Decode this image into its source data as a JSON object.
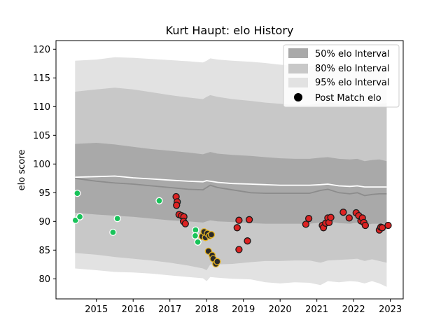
{
  "chart_data": {
    "type": "scatter",
    "title": "Kurt Haupt: elo History",
    "xlabel": "",
    "ylabel": "elo score",
    "xlim": [
      2013.9,
      2023.35
    ],
    "ylim": [
      76.5,
      121.5
    ],
    "xticks": [
      2015,
      2016,
      2017,
      2018,
      2019,
      2020,
      2021,
      2022,
      2023
    ],
    "yticks": [
      80,
      85,
      90,
      95,
      100,
      105,
      110,
      115,
      120
    ],
    "grid": false,
    "legend_position": "top-right",
    "legend": [
      "50% elo Interval",
      "80% elo Interval",
      "95% elo Interval",
      "Post Match elo"
    ],
    "colors": {
      "band50": "#a9a9a9",
      "band80": "#c8c8c8",
      "band95": "#e2e2e2",
      "median_line": "#8c8c8c",
      "mean_line": "#ffffff",
      "marker_green": "#19c35a",
      "marker_yellow": "#e6b422",
      "marker_red": "#dd2222"
    },
    "bands": {
      "x": [
        2014.42,
        2015.0,
        2015.5,
        2016.0,
        2016.5,
        2017.0,
        2017.5,
        2017.9,
        2018.0,
        2018.1,
        2018.3,
        2018.7,
        2019.2,
        2019.6,
        2020.0,
        2020.4,
        2020.8,
        2021.1,
        2021.3,
        2021.6,
        2021.9,
        2022.1,
        2022.3,
        2022.5,
        2022.7,
        2022.9
      ],
      "median": [
        97.5,
        97.0,
        96.7,
        96.5,
        96.2,
        95.9,
        95.6,
        95.5,
        95.9,
        96.3,
        95.9,
        95.5,
        95.0,
        94.9,
        94.9,
        94.9,
        94.9,
        95.4,
        95.6,
        95.0,
        94.8,
        95.0,
        94.5,
        94.7,
        94.8,
        94.8
      ],
      "mean": [
        97.7,
        97.8,
        97.9,
        97.6,
        97.4,
        97.2,
        97.0,
        96.9,
        97.1,
        97.0,
        96.8,
        96.6,
        96.5,
        96.4,
        96.3,
        96.3,
        96.3,
        96.4,
        96.5,
        96.2,
        96.1,
        96.2,
        96.0,
        96.0,
        96.0,
        96.0
      ],
      "p50_upper": [
        103.5,
        103.7,
        103.4,
        103.0,
        102.6,
        102.3,
        102.0,
        101.7,
        101.9,
        102.1,
        101.8,
        101.6,
        101.4,
        101.2,
        101.0,
        100.9,
        100.9,
        101.1,
        101.2,
        100.9,
        100.8,
        100.9,
        100.5,
        100.7,
        100.8,
        100.5
      ],
      "p50_lower": [
        91.5,
        91.2,
        91.0,
        90.8,
        90.5,
        90.2,
        90.0,
        89.8,
        90.0,
        90.2,
        90.0,
        89.9,
        89.7,
        89.6,
        89.6,
        89.6,
        89.6,
        89.8,
        90.0,
        89.7,
        89.6,
        89.8,
        89.3,
        89.6,
        89.6,
        89.6
      ],
      "p80_upper": [
        112.6,
        113.0,
        113.3,
        113.0,
        112.5,
        112.0,
        111.6,
        111.3,
        111.7,
        112.0,
        111.7,
        111.3,
        111.0,
        110.7,
        110.5,
        110.3,
        110.3,
        110.6,
        110.8,
        110.4,
        110.2,
        110.2,
        109.9,
        110.2,
        110.5,
        110.6
      ],
      "p80_lower": [
        84.5,
        84.2,
        83.8,
        83.5,
        83.2,
        82.8,
        82.3,
        81.8,
        81.5,
        82.5,
        82.5,
        82.6,
        82.9,
        83.1,
        83.1,
        83.2,
        83.2,
        82.8,
        83.2,
        83.3,
        83.4,
        83.5,
        83.1,
        83.4,
        83.1,
        82.8
      ],
      "p95_upper": [
        118.0,
        118.2,
        118.6,
        118.5,
        118.3,
        118.1,
        117.9,
        117.7,
        118.0,
        118.4,
        118.2,
        118.0,
        117.8,
        117.6,
        117.3,
        117.1,
        117.0,
        117.3,
        117.4,
        117.1,
        116.9,
        116.9,
        116.6,
        116.9,
        117.1,
        117.2
      ],
      "p95_lower": [
        81.8,
        81.5,
        81.2,
        81.1,
        80.9,
        80.6,
        80.3,
        80.1,
        79.6,
        80.3,
        80.2,
        80.0,
        79.9,
        79.4,
        79.2,
        79.4,
        79.3,
        78.9,
        79.6,
        79.4,
        79.6,
        79.5,
        79.2,
        79.6,
        79.2,
        78.6
      ]
    },
    "points": [
      {
        "x": 2014.48,
        "y": 94.9,
        "group": "green"
      },
      {
        "x": 2014.43,
        "y": 90.2,
        "group": "green"
      },
      {
        "x": 2014.55,
        "y": 90.8,
        "group": "green"
      },
      {
        "x": 2015.45,
        "y": 88.1,
        "group": "green"
      },
      {
        "x": 2015.57,
        "y": 90.5,
        "group": "green"
      },
      {
        "x": 2016.71,
        "y": 93.6,
        "group": "green"
      },
      {
        "x": 2017.17,
        "y": 94.3,
        "group": "red"
      },
      {
        "x": 2017.2,
        "y": 93.4,
        "group": "red"
      },
      {
        "x": 2017.18,
        "y": 92.8,
        "group": "red"
      },
      {
        "x": 2017.25,
        "y": 91.2,
        "group": "red"
      },
      {
        "x": 2017.32,
        "y": 91.0,
        "group": "red"
      },
      {
        "x": 2017.38,
        "y": 90.8,
        "group": "red"
      },
      {
        "x": 2017.37,
        "y": 90.0,
        "group": "red"
      },
      {
        "x": 2017.42,
        "y": 89.6,
        "group": "red"
      },
      {
        "x": 2017.7,
        "y": 88.5,
        "group": "green"
      },
      {
        "x": 2017.69,
        "y": 87.5,
        "group": "green"
      },
      {
        "x": 2017.76,
        "y": 86.4,
        "group": "green"
      },
      {
        "x": 2017.88,
        "y": 87.4,
        "group": "yellow"
      },
      {
        "x": 2017.93,
        "y": 88.2,
        "group": "yellow"
      },
      {
        "x": 2017.97,
        "y": 87.2,
        "group": "yellow"
      },
      {
        "x": 2018.02,
        "y": 87.9,
        "group": "yellow"
      },
      {
        "x": 2018.08,
        "y": 87.5,
        "group": "yellow"
      },
      {
        "x": 2018.13,
        "y": 87.7,
        "group": "yellow"
      },
      {
        "x": 2018.05,
        "y": 84.8,
        "group": "yellow"
      },
      {
        "x": 2018.15,
        "y": 84.1,
        "group": "yellow"
      },
      {
        "x": 2018.18,
        "y": 83.5,
        "group": "yellow"
      },
      {
        "x": 2018.25,
        "y": 82.6,
        "group": "yellow"
      },
      {
        "x": 2018.29,
        "y": 83.0,
        "group": "yellow"
      },
      {
        "x": 2018.83,
        "y": 88.9,
        "group": "red"
      },
      {
        "x": 2018.88,
        "y": 90.2,
        "group": "red"
      },
      {
        "x": 2018.88,
        "y": 85.1,
        "group": "red"
      },
      {
        "x": 2019.11,
        "y": 86.6,
        "group": "red"
      },
      {
        "x": 2019.16,
        "y": 90.3,
        "group": "red"
      },
      {
        "x": 2020.7,
        "y": 89.5,
        "group": "red"
      },
      {
        "x": 2020.78,
        "y": 90.5,
        "group": "red"
      },
      {
        "x": 2021.15,
        "y": 89.3,
        "group": "red"
      },
      {
        "x": 2021.18,
        "y": 88.9,
        "group": "red"
      },
      {
        "x": 2021.24,
        "y": 89.7,
        "group": "red"
      },
      {
        "x": 2021.3,
        "y": 90.6,
        "group": "red"
      },
      {
        "x": 2021.33,
        "y": 89.8,
        "group": "red"
      },
      {
        "x": 2021.38,
        "y": 90.7,
        "group": "red"
      },
      {
        "x": 2021.72,
        "y": 91.6,
        "group": "red"
      },
      {
        "x": 2021.88,
        "y": 90.6,
        "group": "red"
      },
      {
        "x": 2022.07,
        "y": 91.5,
        "group": "red"
      },
      {
        "x": 2022.14,
        "y": 91.0,
        "group": "red"
      },
      {
        "x": 2022.2,
        "y": 90.1,
        "group": "red"
      },
      {
        "x": 2022.24,
        "y": 90.6,
        "group": "red"
      },
      {
        "x": 2022.28,
        "y": 89.8,
        "group": "red"
      },
      {
        "x": 2022.32,
        "y": 89.3,
        "group": "red"
      },
      {
        "x": 2022.7,
        "y": 88.5,
        "group": "red"
      },
      {
        "x": 2022.74,
        "y": 89.0,
        "group": "red"
      },
      {
        "x": 2022.78,
        "y": 88.9,
        "group": "red"
      },
      {
        "x": 2022.94,
        "y": 89.3,
        "group": "red"
      }
    ]
  }
}
